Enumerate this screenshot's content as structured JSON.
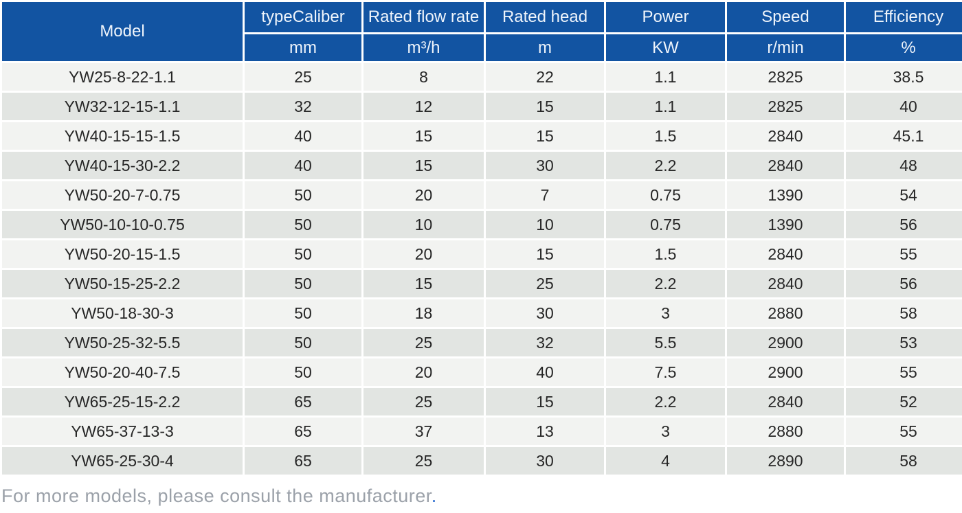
{
  "table": {
    "columns": [
      {
        "label": "Model",
        "unit": ""
      },
      {
        "label": "typeCaliber",
        "unit": "mm"
      },
      {
        "label": "Rated flow rate",
        "unit": "m³/h"
      },
      {
        "label": "Rated head",
        "unit": "m"
      },
      {
        "label": "Power",
        "unit": "KW"
      },
      {
        "label": "Speed",
        "unit": "r/min"
      },
      {
        "label": "Efficiency",
        "unit": "%"
      }
    ],
    "rows": [
      [
        "YW25-8-22-1.1",
        "25",
        "8",
        "22",
        "1.1",
        "2825",
        "38.5"
      ],
      [
        "YW32-12-15-1.1",
        "32",
        "12",
        "15",
        "1.1",
        "2825",
        "40"
      ],
      [
        "YW40-15-15-1.5",
        "40",
        "15",
        "15",
        "1.5",
        "2840",
        "45.1"
      ],
      [
        "YW40-15-30-2.2",
        "40",
        "15",
        "30",
        "2.2",
        "2840",
        "48"
      ],
      [
        "YW50-20-7-0.75",
        "50",
        "20",
        "7",
        "0.75",
        "1390",
        "54"
      ],
      [
        "YW50-10-10-0.75",
        "50",
        "10",
        "10",
        "0.75",
        "1390",
        "56"
      ],
      [
        "YW50-20-15-1.5",
        "50",
        "20",
        "15",
        "1.5",
        "2840",
        "55"
      ],
      [
        "YW50-15-25-2.2",
        "50",
        "15",
        "25",
        "2.2",
        "2840",
        "56"
      ],
      [
        "YW50-18-30-3",
        "50",
        "18",
        "30",
        "3",
        "2880",
        "58"
      ],
      [
        "YW50-25-32-5.5",
        "50",
        "25",
        "32",
        "5.5",
        "2900",
        "53"
      ],
      [
        "YW50-20-40-7.5",
        "50",
        "20",
        "40",
        "7.5",
        "2900",
        "55"
      ],
      [
        "YW65-25-15-2.2",
        "65",
        "25",
        "15",
        "2.2",
        "2840",
        "52"
      ],
      [
        "YW65-37-13-3",
        "65",
        "37",
        "13",
        "3",
        "2880",
        "55"
      ],
      [
        "YW65-25-30-4",
        "65",
        "25",
        "30",
        "4",
        "2890",
        "58"
      ]
    ]
  },
  "footer": {
    "note": "For more models, please consult the manufacturer",
    "note_period": "."
  },
  "colors": {
    "header_bg": "#1254a2",
    "row_odd": "#f2f3f1",
    "row_even": "#e2e5e2",
    "body_text": "#262626",
    "header_text": "#eef4fb",
    "note_text": "#9ba1a9",
    "note_period": "#2f6fd0"
  }
}
